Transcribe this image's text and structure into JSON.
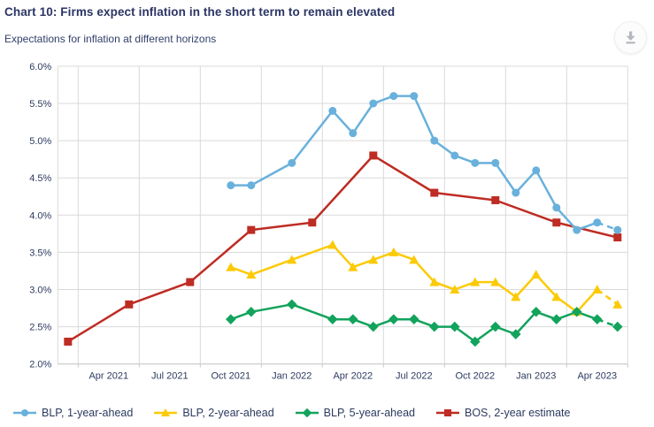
{
  "header": {
    "title": "Chart 10: Firms expect inflation in the short term to remain elevated",
    "subtitle": "Expectations for inflation at different horizons"
  },
  "chart_data": {
    "type": "line",
    "title": "Chart 10: Firms expect inflation in the short term to remain elevated",
    "subtitle": "Expectations for inflation at different horizons",
    "ylabel": "",
    "xlabel": "",
    "grid": true,
    "legend_position": "bottom-left",
    "y_axis": {
      "min": 2.0,
      "max": 6.0,
      "step": 0.5,
      "ticks": [
        6.0,
        5.5,
        5.0,
        4.5,
        4.0,
        3.5,
        3.0,
        2.5,
        2.0
      ],
      "tick_labels": [
        "6.0%",
        "5.5%",
        "5.0%",
        "4.5%",
        "4.0%",
        "3.5%",
        "3.0%",
        "2.5%",
        "2.0%"
      ]
    },
    "x_axis": {
      "months": [
        "Mar 2021",
        "Apr 2021",
        "May 2021",
        "Jun 2021",
        "Jul 2021",
        "Aug 2021",
        "Sep 2021",
        "Oct 2021",
        "Nov 2021",
        "Dec 2021",
        "Jan 2022",
        "Feb 2022",
        "Mar 2022",
        "Apr 2022",
        "May 2022",
        "Jun 2022",
        "Jul 2022",
        "Aug 2022",
        "Sep 2022",
        "Oct 2022",
        "Nov 2022",
        "Dec 2022",
        "Jan 2023",
        "Feb 2023",
        "Mar 2023",
        "Apr 2023",
        "May 2023",
        "Jun 2023"
      ],
      "quarter_labels": [
        "Apr 2021",
        "Jul 2021",
        "Oct 2021",
        "Jan 2022",
        "Apr 2022",
        "Jul 2022",
        "Oct 2022",
        "Jan 2023",
        "Apr 2023"
      ]
    },
    "colors": {
      "grid": "#d9d9d9",
      "axis": "#c9c9c9",
      "text": "#2b3a5f"
    },
    "series": [
      {
        "id": "blp-1-year-ahead",
        "name": "BLP, 1-year-ahead",
        "color": "#69b1dc",
        "marker": "circle",
        "last_segment_dashed": true,
        "points": [
          [
            "Nov 2021",
            4.4
          ],
          [
            "Dec 2021",
            4.4
          ],
          [
            "Feb 2022",
            4.7
          ],
          [
            "Apr 2022",
            5.4
          ],
          [
            "May 2022",
            5.1
          ],
          [
            "Jun 2022",
            5.5
          ],
          [
            "Jul 2022",
            5.6
          ],
          [
            "Aug 2022",
            5.6
          ],
          [
            "Sep 2022",
            5.0
          ],
          [
            "Oct 2022",
            4.8
          ],
          [
            "Nov 2022",
            4.7
          ],
          [
            "Dec 2022",
            4.7
          ],
          [
            "Jan 2023",
            4.3
          ],
          [
            "Feb 2023",
            4.6
          ],
          [
            "Mar 2023",
            4.1
          ],
          [
            "Apr 2023",
            3.8
          ],
          [
            "May 2023",
            3.9
          ],
          [
            "Jun 2023",
            3.8
          ]
        ]
      },
      {
        "id": "blp-2-year-ahead",
        "name": "BLP, 2-year-ahead",
        "color": "#fcca06",
        "marker": "triangle",
        "last_segment_dashed": true,
        "points": [
          [
            "Nov 2021",
            3.3
          ],
          [
            "Dec 2021",
            3.2
          ],
          [
            "Feb 2022",
            3.4
          ],
          [
            "Apr 2022",
            3.6
          ],
          [
            "May 2022",
            3.3
          ],
          [
            "Jun 2022",
            3.4
          ],
          [
            "Jul 2022",
            3.5
          ],
          [
            "Aug 2022",
            3.4
          ],
          [
            "Sep 2022",
            3.1
          ],
          [
            "Oct 2022",
            3.0
          ],
          [
            "Nov 2022",
            3.1
          ],
          [
            "Dec 2022",
            3.1
          ],
          [
            "Jan 2023",
            2.9
          ],
          [
            "Feb 2023",
            3.2
          ],
          [
            "Mar 2023",
            2.9
          ],
          [
            "Apr 2023",
            2.7
          ],
          [
            "May 2023",
            3.0
          ],
          [
            "Jun 2023",
            2.8
          ]
        ]
      },
      {
        "id": "blp-5-year-ahead",
        "name": "BLP, 5-year-ahead",
        "color": "#12a35c",
        "marker": "diamond",
        "last_segment_dashed": true,
        "points": [
          [
            "Nov 2021",
            2.6
          ],
          [
            "Dec 2021",
            2.7
          ],
          [
            "Feb 2022",
            2.8
          ],
          [
            "Apr 2022",
            2.6
          ],
          [
            "May 2022",
            2.6
          ],
          [
            "Jun 2022",
            2.5
          ],
          [
            "Jul 2022",
            2.6
          ],
          [
            "Aug 2022",
            2.6
          ],
          [
            "Sep 2022",
            2.5
          ],
          [
            "Oct 2022",
            2.5
          ],
          [
            "Nov 2022",
            2.3
          ],
          [
            "Dec 2022",
            2.5
          ],
          [
            "Jan 2023",
            2.4
          ],
          [
            "Feb 2023",
            2.7
          ],
          [
            "Mar 2023",
            2.6
          ],
          [
            "Apr 2023",
            2.7
          ],
          [
            "May 2023",
            2.6
          ],
          [
            "Jun 2023",
            2.5
          ]
        ]
      },
      {
        "id": "bos-2-year-estimate",
        "name": "BOS, 2-year estimate",
        "color": "#be2c23",
        "marker": "square",
        "last_segment_dashed": false,
        "points": [
          [
            "Mar 2021",
            2.3
          ],
          [
            "Jun 2021",
            2.8
          ],
          [
            "Sep 2021",
            3.1
          ],
          [
            "Dec 2021",
            3.8
          ],
          [
            "Mar 2022",
            3.9
          ],
          [
            "Jun 2022",
            4.8
          ],
          [
            "Sep 2022",
            4.3
          ],
          [
            "Dec 2022",
            4.2
          ],
          [
            "Mar 2023",
            3.9
          ],
          [
            "Jun 2023",
            3.7
          ]
        ]
      }
    ]
  }
}
